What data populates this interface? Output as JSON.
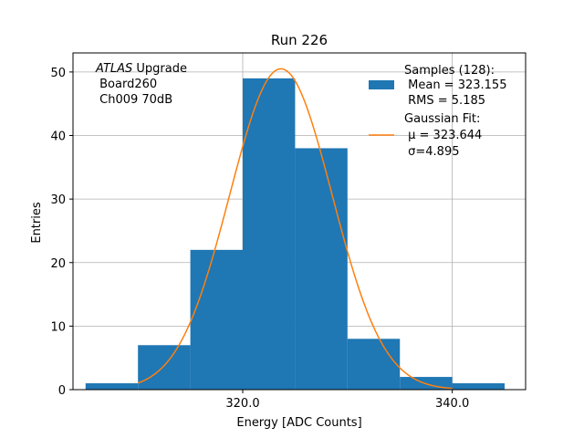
{
  "chart_data": {
    "type": "bar",
    "title": "Run 226",
    "xlabel": "Energy [ADC Counts]",
    "ylabel": "Entries",
    "xlim": [
      303.8,
      347.0
    ],
    "ylim": [
      0,
      53
    ],
    "grid": true,
    "x_ticks": [
      320.0,
      340.0
    ],
    "x_tick_labels": [
      "320.0",
      "340.0"
    ],
    "y_ticks": [
      0,
      10,
      20,
      30,
      40,
      50
    ],
    "y_tick_labels": [
      "0",
      "10",
      "20",
      "30",
      "40",
      "50"
    ],
    "histogram": {
      "name": "Samples (128)",
      "color": "#1f77b4",
      "bin_edges": [
        305.0,
        310.0,
        315.0,
        320.0,
        325.0,
        330.0,
        335.0,
        340.0,
        345.0
      ],
      "values": [
        1,
        7,
        22,
        49,
        38,
        8,
        2,
        1
      ]
    },
    "fit": {
      "name": "Gaussian Fit",
      "color": "#ff7f0e",
      "mu": 323.644,
      "sigma": 4.895,
      "amplitude": 50.5,
      "x_range": [
        310.0,
        340.0
      ]
    },
    "annotation": {
      "italic_part": "ATLAS",
      "line1_rest": " Upgrade",
      "line2": " Board260",
      "line3": " Ch009 70dB"
    },
    "legend": {
      "position": "top-right",
      "hist_lines": [
        "Samples (128):",
        " Mean = 323.155",
        " RMS = 5.185"
      ],
      "fit_lines": [
        "Gaussian Fit:",
        " μ = 323.644",
        " σ=4.895"
      ]
    }
  }
}
